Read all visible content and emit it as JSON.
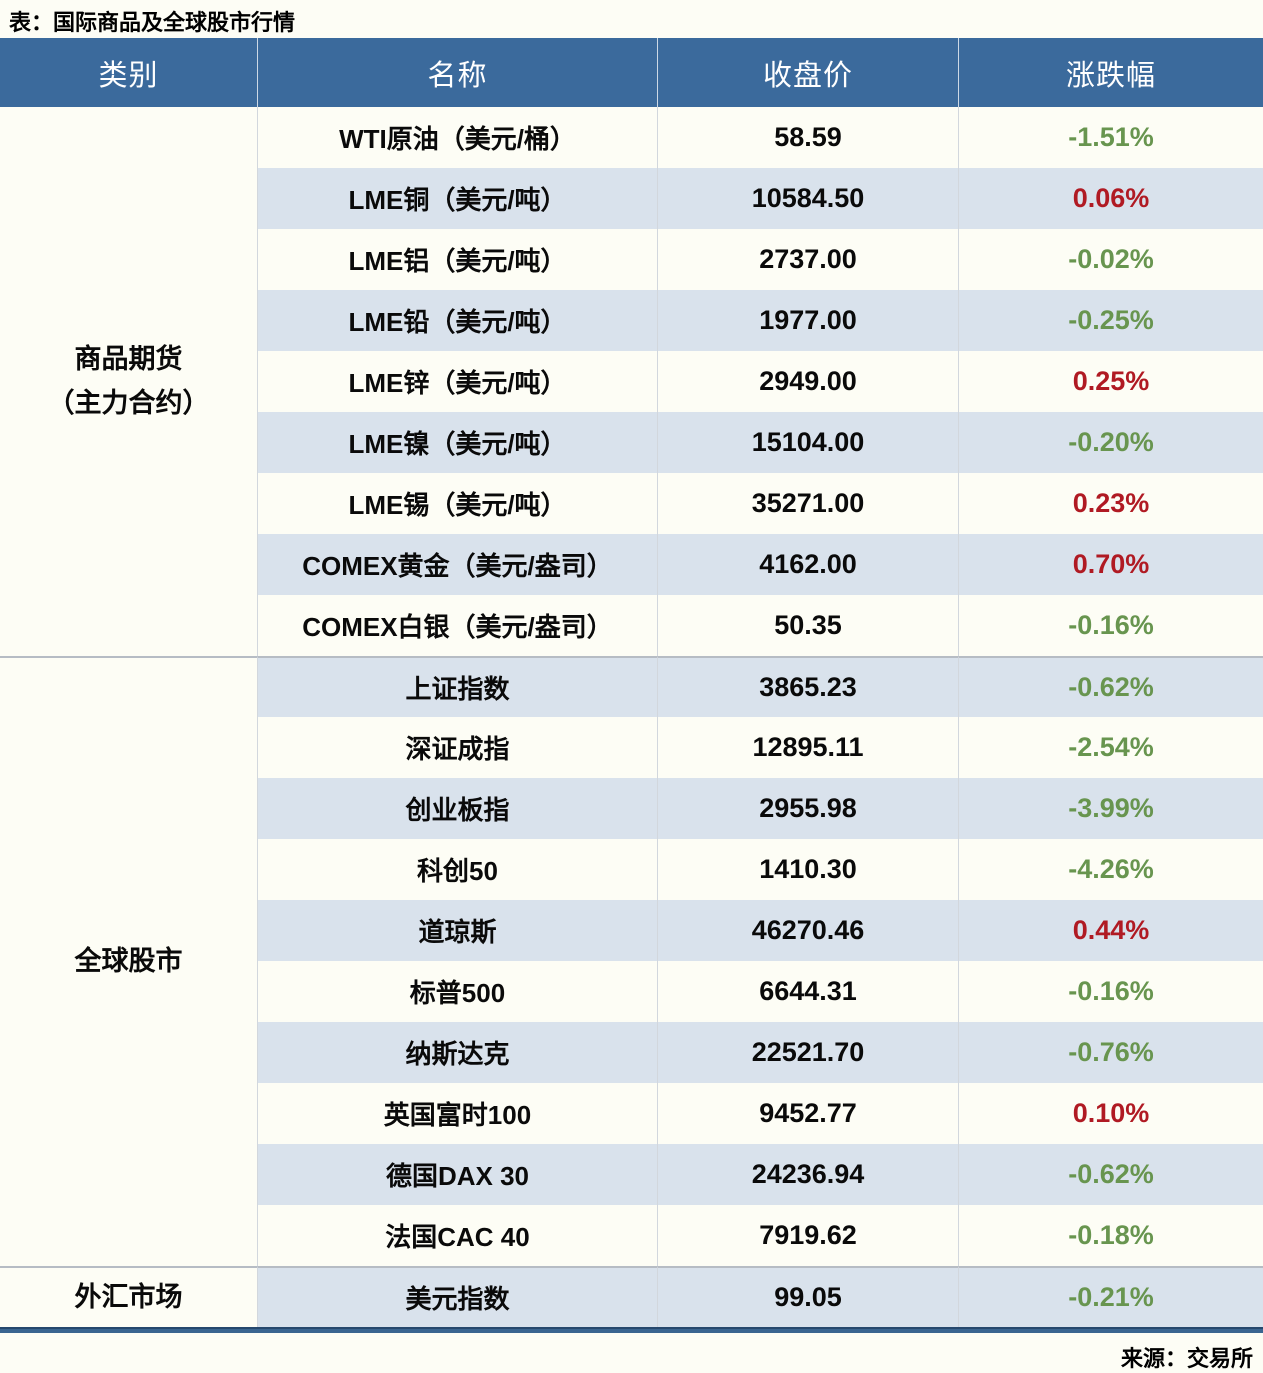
{
  "title": "表：国际商品及全球股市行情",
  "source": "来源：交易所",
  "colors": {
    "page_bg": "#FDFDF5",
    "header_bg": "#3B6A9C",
    "header_text": "#FFFFFF",
    "stripe_bg": "#D9E2EC",
    "text": "#0A0A0A",
    "up_red": "#B01A23",
    "down_green": "#68954F",
    "divider_gray": "#B6BCC4",
    "column_line": "#D2D7DD",
    "bottom_border": "#3A6590"
  },
  "chart_data": {
    "type": "table",
    "columns": [
      "类别",
      "名称",
      "收盘价",
      "涨跌幅"
    ],
    "sections": [
      {
        "category_lines": [
          "商品期货",
          "（主力合约）"
        ],
        "rows": [
          {
            "name": "WTI原油（美元/桶）",
            "close": "58.59",
            "change": "-1.51%"
          },
          {
            "name": "LME铜（美元/吨）",
            "close": "10584.50",
            "change": "0.06%"
          },
          {
            "name": "LME铝（美元/吨）",
            "close": "2737.00",
            "change": "-0.02%"
          },
          {
            "name": "LME铅（美元/吨）",
            "close": "1977.00",
            "change": "-0.25%"
          },
          {
            "name": "LME锌（美元/吨）",
            "close": "2949.00",
            "change": "0.25%"
          },
          {
            "name": "LME镍（美元/吨）",
            "close": "15104.00",
            "change": "-0.20%"
          },
          {
            "name": "LME锡（美元/吨）",
            "close": "35271.00",
            "change": "0.23%"
          },
          {
            "name": "COMEX黄金（美元/盎司）",
            "close": "4162.00",
            "change": "0.70%"
          },
          {
            "name": "COMEX白银（美元/盎司）",
            "close": "50.35",
            "change": "-0.16%"
          }
        ]
      },
      {
        "category_lines": [
          "全球股市"
        ],
        "rows": [
          {
            "name": "上证指数",
            "close": "3865.23",
            "change": "-0.62%"
          },
          {
            "name": "深证成指",
            "close": "12895.11",
            "change": "-2.54%"
          },
          {
            "name": "创业板指",
            "close": "2955.98",
            "change": "-3.99%"
          },
          {
            "name": "科创50",
            "close": "1410.30",
            "change": "-4.26%"
          },
          {
            "name": "道琼斯",
            "close": "46270.46",
            "change": "0.44%"
          },
          {
            "name": "标普500",
            "close": "6644.31",
            "change": "-0.16%"
          },
          {
            "name": "纳斯达克",
            "close": "22521.70",
            "change": "-0.76%"
          },
          {
            "name": "英国富时100",
            "close": "9452.77",
            "change": "0.10%"
          },
          {
            "name": "德国DAX 30",
            "close": "24236.94",
            "change": "-0.62%"
          },
          {
            "name": "法国CAC 40",
            "close": "7919.62",
            "change": "-0.18%"
          }
        ]
      },
      {
        "category_lines": [
          "外汇市场"
        ],
        "rows": [
          {
            "name": "美元指数",
            "close": "99.05",
            "change": "-0.21%"
          }
        ]
      }
    ]
  }
}
